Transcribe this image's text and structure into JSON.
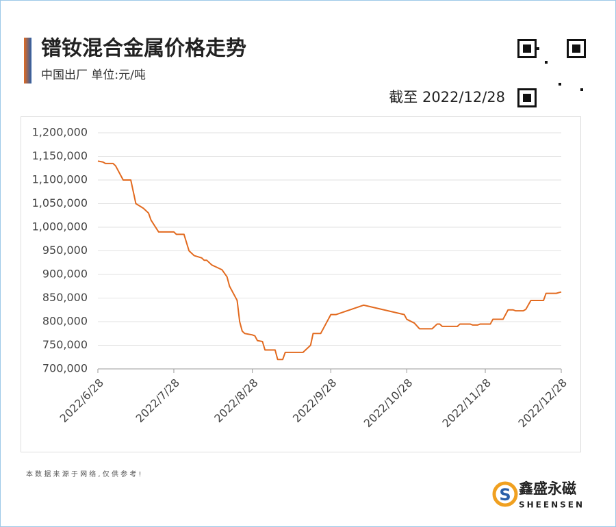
{
  "chart_data": {
    "type": "line",
    "title": "镨钕混合金属价格走势",
    "subtitle": "中国出厂  单位:元/吨",
    "as_of": "截至 2022/12/28",
    "source_note": "本 数 据 来 源 于 网 络 , 仅 供 参 考 !",
    "brand": {
      "name": "鑫盛永磁",
      "latin": "SHEENSEN"
    },
    "x": [
      "2022/6/28",
      "2022/6/30",
      "2022/7/1",
      "2022/7/4",
      "2022/7/5",
      "2022/7/7",
      "2022/7/8",
      "2022/7/11",
      "2022/7/13",
      "2022/7/16",
      "2022/7/18",
      "2022/7/19",
      "2022/7/22",
      "2022/7/28",
      "2022/7/29",
      "2022/8/1",
      "2022/8/3",
      "2022/8/5",
      "2022/8/8",
      "2022/8/9",
      "2022/8/10",
      "2022/8/12",
      "2022/8/14",
      "2022/8/16",
      "2022/8/18",
      "2022/8/19",
      "2022/8/22",
      "2022/8/23",
      "2022/8/24",
      "2022/8/25",
      "2022/8/28",
      "2022/8/29",
      "2022/8/30",
      "2022/9/1",
      "2022/9/2",
      "2022/9/6",
      "2022/9/7",
      "2022/9/9",
      "2022/9/10",
      "2022/9/17",
      "2022/9/20",
      "2022/9/21",
      "2022/9/24",
      "2022/9/26",
      "2022/9/28",
      "2022/9/30",
      "2022/10/11",
      "2022/10/27",
      "2022/10/28",
      "2022/10/31",
      "2022/11/2",
      "2022/11/7",
      "2022/11/9",
      "2022/11/10",
      "2022/11/11",
      "2022/11/17",
      "2022/11/18",
      "2022/11/22",
      "2022/11/23",
      "2022/11/25",
      "2022/11/26",
      "2022/11/30",
      "2022/12/1",
      "2022/12/5",
      "2022/12/7",
      "2022/12/9",
      "2022/12/10",
      "2022/12/13",
      "2022/12/14",
      "2022/12/16",
      "2022/12/21",
      "2022/12/22",
      "2022/12/26",
      "2022/12/28"
    ],
    "series": [
      {
        "name": "镨钕混合金属",
        "color": "#e26a1f",
        "values": [
          1140000,
          1138000,
          1135000,
          1135000,
          1130000,
          1110000,
          1100000,
          1100000,
          1050000,
          1040000,
          1030000,
          1015000,
          990000,
          990000,
          985000,
          985000,
          950000,
          940000,
          935000,
          930000,
          930000,
          920000,
          915000,
          910000,
          895000,
          875000,
          845000,
          800000,
          780000,
          775000,
          772000,
          770000,
          760000,
          758000,
          740000,
          740000,
          720000,
          720000,
          735000,
          735000,
          750000,
          775000,
          775000,
          795000,
          815000,
          815000,
          835000,
          815000,
          805000,
          797000,
          785000,
          785000,
          795000,
          795000,
          790000,
          790000,
          795000,
          795000,
          793000,
          793000,
          795000,
          795000,
          805000,
          805000,
          825000,
          825000,
          823000,
          823000,
          826000,
          845000,
          845000,
          860000,
          860000,
          863000
        ]
      }
    ],
    "xlim": [
      "2022/6/28",
      "2022/12/28"
    ],
    "xticks": [
      "2022/6/28",
      "2022/7/28",
      "2022/8/28",
      "2022/9/28",
      "2022/10/28",
      "2022/11/28",
      "2022/12/28"
    ],
    "ylim": [
      700000,
      1200000
    ],
    "yticks": [
      {
        "value": 700000,
        "label": "700,000"
      },
      {
        "value": 750000,
        "label": "750,000"
      },
      {
        "value": 800000,
        "label": "800,000"
      },
      {
        "value": 850000,
        "label": "850,000"
      },
      {
        "value": 900000,
        "label": "900,000"
      },
      {
        "value": 950000,
        "label": "950,000"
      },
      {
        "value": 1000000,
        "label": "1,000,000"
      },
      {
        "value": 1050000,
        "label": "1,050,000"
      },
      {
        "value": 1100000,
        "label": "1,100,000"
      },
      {
        "value": 1150000,
        "label": "1,150,000"
      },
      {
        "value": 1200000,
        "label": "1,200,000"
      }
    ],
    "grid": true
  }
}
